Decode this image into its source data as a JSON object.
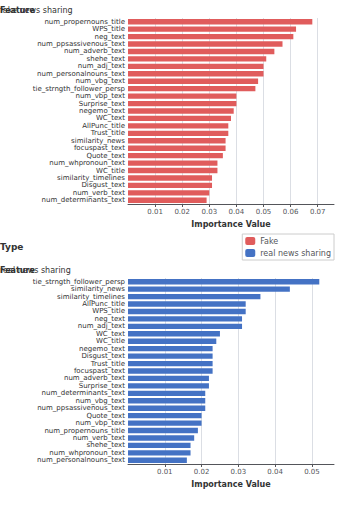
{
  "chart_data": [
    {
      "type": "bar",
      "orientation": "horizontal",
      "subtitle": "fake news sharing",
      "xlabel": "Importance Value",
      "ylabel": "Feature",
      "categories": [
        "num_propernouns_title",
        "WPS_title",
        "neg_text",
        "num_ppsassivenous_text",
        "num_adverb_text",
        "shehe_text",
        "num_adj_text",
        "num_personalnouns_text",
        "num_vbg_text",
        "tie_strngth_follower_persp",
        "num_vbp_text",
        "Surprise_text",
        "negemo_text",
        "WC_text",
        "AllPunc_title",
        "Trust_title",
        "similarity_news",
        "focuspast_text",
        "Quote_text",
        "num_whpronoun_text",
        "WC_title",
        "similarity_timelines",
        "Disgust_text",
        "num_verb_text",
        "num_determinants_text"
      ],
      "series": [
        {
          "name": "Fake",
          "color": "#e05c5c",
          "values": [
            0.068,
            0.062,
            0.061,
            0.057,
            0.054,
            0.051,
            0.05,
            0.05,
            0.048,
            0.047,
            0.04,
            0.04,
            0.039,
            0.038,
            0.037,
            0.037,
            0.036,
            0.036,
            0.035,
            0.033,
            0.033,
            0.031,
            0.031,
            0.03,
            0.029
          ]
        }
      ],
      "xlim": [
        0,
        0.076
      ],
      "xticks": [
        0.01,
        0.02,
        0.03,
        0.04,
        0.05,
        0.06,
        0.07
      ],
      "grid": true,
      "legend": "lower right",
      "annotations": [
        {
          "text": "Type"
        }
      ]
    },
    {
      "type": "bar",
      "orientation": "horizontal",
      "subtitle": "real news sharing",
      "xlabel": "Importance Value",
      "ylabel": "Feature",
      "categories": [
        "tie_strngth_follower_persp",
        "similarity_news",
        "similarity_timelines",
        "AllPunc_title",
        "WPS_title",
        "neg_text",
        "num_adj_text",
        "WC_text",
        "WC_title",
        "negemo_text",
        "Disgust_text",
        "Trust_title",
        "focuspast_text",
        "num_adverb_text",
        "Surprise_text",
        "num_determinants_text",
        "num_vbg_text",
        "num_ppsassivenous_text",
        "Quote_text",
        "num_vbp_text",
        "num_propernouns_title",
        "num_verb_text",
        "shehe_text",
        "num_whpronoun_text",
        "num_personalnouns_text"
      ],
      "series": [
        {
          "name": "real news sharing",
          "color": "#4472c4",
          "values": [
            0.052,
            0.044,
            0.036,
            0.032,
            0.032,
            0.031,
            0.031,
            0.025,
            0.024,
            0.023,
            0.023,
            0.023,
            0.023,
            0.022,
            0.022,
            0.021,
            0.021,
            0.021,
            0.02,
            0.02,
            0.019,
            0.018,
            0.017,
            0.017,
            0.016
          ]
        }
      ],
      "xlim": [
        0,
        0.056
      ],
      "xticks": [
        0.01,
        0.02,
        0.03,
        0.04,
        0.05
      ],
      "grid": true
    }
  ]
}
